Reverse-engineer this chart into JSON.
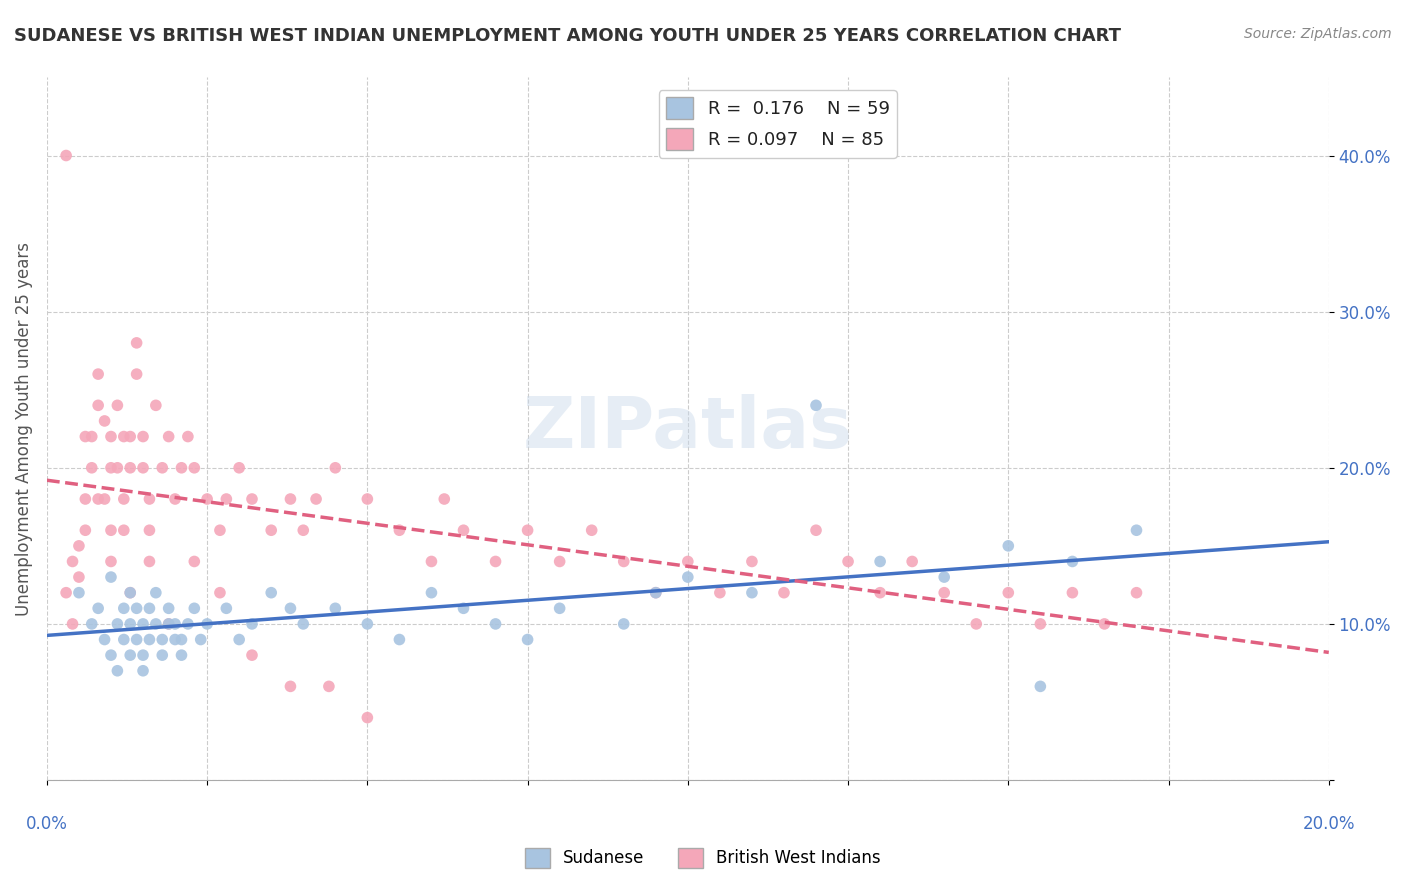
{
  "title": "SUDANESE VS BRITISH WEST INDIAN UNEMPLOYMENT AMONG YOUTH UNDER 25 YEARS CORRELATION CHART",
  "source": "Source: ZipAtlas.com",
  "ylabel": "Unemployment Among Youth under 25 years",
  "xmin": 0.0,
  "xmax": 0.2,
  "ymin": 0.0,
  "ymax": 0.45,
  "yticks": [
    0.0,
    0.1,
    0.2,
    0.3,
    0.4
  ],
  "ytick_labels": [
    "",
    "10.0%",
    "20.0%",
    "30.0%",
    "40.0%"
  ],
  "xticks": [
    0.0,
    0.025,
    0.05,
    0.075,
    0.1,
    0.125,
    0.15,
    0.175,
    0.2
  ],
  "legend_R1": "0.176",
  "legend_N1": "59",
  "legend_R2": "0.097",
  "legend_N2": "85",
  "color_sudanese": "#a8c4e0",
  "color_bwi": "#f4a7b9",
  "color_sudanese_line": "#4472c4",
  "color_bwi_line": "#e06080",
  "sudanese_x": [
    0.005,
    0.007,
    0.008,
    0.009,
    0.01,
    0.01,
    0.011,
    0.011,
    0.012,
    0.012,
    0.013,
    0.013,
    0.013,
    0.014,
    0.014,
    0.015,
    0.015,
    0.015,
    0.016,
    0.016,
    0.017,
    0.017,
    0.018,
    0.018,
    0.019,
    0.019,
    0.02,
    0.02,
    0.021,
    0.021,
    0.022,
    0.023,
    0.024,
    0.025,
    0.028,
    0.03,
    0.032,
    0.035,
    0.038,
    0.04,
    0.045,
    0.05,
    0.055,
    0.06,
    0.065,
    0.07,
    0.075,
    0.08,
    0.09,
    0.095,
    0.1,
    0.11,
    0.12,
    0.13,
    0.14,
    0.15,
    0.16,
    0.17,
    0.155
  ],
  "sudanese_y": [
    0.12,
    0.1,
    0.11,
    0.09,
    0.13,
    0.08,
    0.1,
    0.07,
    0.11,
    0.09,
    0.08,
    0.12,
    0.1,
    0.09,
    0.11,
    0.1,
    0.08,
    0.07,
    0.09,
    0.11,
    0.12,
    0.1,
    0.09,
    0.08,
    0.1,
    0.11,
    0.09,
    0.1,
    0.08,
    0.09,
    0.1,
    0.11,
    0.09,
    0.1,
    0.11,
    0.09,
    0.1,
    0.12,
    0.11,
    0.1,
    0.11,
    0.1,
    0.09,
    0.12,
    0.11,
    0.1,
    0.09,
    0.11,
    0.1,
    0.12,
    0.13,
    0.12,
    0.24,
    0.14,
    0.13,
    0.15,
    0.14,
    0.16,
    0.06
  ],
  "bwi_x": [
    0.003,
    0.004,
    0.005,
    0.005,
    0.006,
    0.006,
    0.007,
    0.007,
    0.008,
    0.008,
    0.009,
    0.009,
    0.01,
    0.01,
    0.01,
    0.011,
    0.011,
    0.012,
    0.012,
    0.012,
    0.013,
    0.013,
    0.014,
    0.014,
    0.015,
    0.015,
    0.016,
    0.016,
    0.017,
    0.018,
    0.019,
    0.02,
    0.021,
    0.022,
    0.023,
    0.025,
    0.027,
    0.028,
    0.03,
    0.032,
    0.035,
    0.038,
    0.04,
    0.042,
    0.045,
    0.05,
    0.055,
    0.06,
    0.062,
    0.065,
    0.07,
    0.075,
    0.08,
    0.085,
    0.09,
    0.095,
    0.1,
    0.105,
    0.11,
    0.115,
    0.12,
    0.125,
    0.13,
    0.135,
    0.14,
    0.145,
    0.15,
    0.155,
    0.16,
    0.165,
    0.17,
    0.003,
    0.004,
    0.006,
    0.008,
    0.01,
    0.013,
    0.016,
    0.019,
    0.023,
    0.027,
    0.032,
    0.038,
    0.044,
    0.05
  ],
  "bwi_y": [
    0.4,
    0.1,
    0.15,
    0.13,
    0.22,
    0.18,
    0.2,
    0.22,
    0.24,
    0.26,
    0.23,
    0.18,
    0.2,
    0.22,
    0.16,
    0.24,
    0.2,
    0.22,
    0.18,
    0.16,
    0.2,
    0.22,
    0.28,
    0.26,
    0.22,
    0.2,
    0.18,
    0.16,
    0.24,
    0.2,
    0.22,
    0.18,
    0.2,
    0.22,
    0.2,
    0.18,
    0.16,
    0.18,
    0.2,
    0.18,
    0.16,
    0.18,
    0.16,
    0.18,
    0.2,
    0.18,
    0.16,
    0.14,
    0.18,
    0.16,
    0.14,
    0.16,
    0.14,
    0.16,
    0.14,
    0.12,
    0.14,
    0.12,
    0.14,
    0.12,
    0.16,
    0.14,
    0.12,
    0.14,
    0.12,
    0.1,
    0.12,
    0.1,
    0.12,
    0.1,
    0.12,
    0.12,
    0.14,
    0.16,
    0.18,
    0.14,
    0.12,
    0.14,
    0.1,
    0.14,
    0.12,
    0.08,
    0.06,
    0.06,
    0.04
  ]
}
